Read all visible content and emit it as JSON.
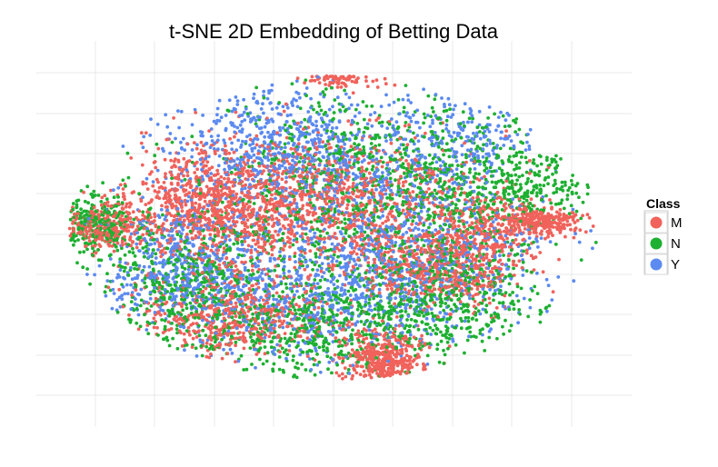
{
  "chart_data": {
    "type": "scatter",
    "title": "t-SNE 2D Embedding of Betting Data",
    "xlabel": "",
    "ylabel": "",
    "grid": true,
    "axes_tick_labels_visible": false,
    "legend": {
      "title": "Class",
      "placement": "right",
      "entries": [
        {
          "label": "M",
          "color": "#F0625B"
        },
        {
          "label": "N",
          "color": "#1DB031"
        },
        {
          "label": "Y",
          "color": "#5B8AF0"
        }
      ]
    },
    "xlim": [
      -60,
      60
    ],
    "ylim": [
      -60,
      60
    ],
    "series": [
      {
        "class": "M",
        "color": "#F0625B",
        "clusters": [
          {
            "cx": -25,
            "cy": 8,
            "sx": 8,
            "sy": 9,
            "weight": 3
          },
          {
            "cx": 0,
            "cy": 10,
            "sx": 14,
            "sy": 12,
            "weight": 4
          },
          {
            "cx": 10,
            "cy": -40,
            "sx": 4,
            "sy": 5,
            "weight": 2
          },
          {
            "cx": 22,
            "cy": -10,
            "sx": 8,
            "sy": 6,
            "weight": 2
          },
          {
            "cx": 2,
            "cy": 50,
            "sx": 4,
            "sy": 2,
            "weight": 1
          },
          {
            "cx": -46,
            "cy": 2,
            "sx": 4,
            "sy": 4,
            "weight": 1
          },
          {
            "cx": -20,
            "cy": -25,
            "sx": 10,
            "sy": 6,
            "weight": 2
          },
          {
            "cx": 42,
            "cy": 4,
            "sx": 4,
            "sy": 2,
            "weight": 1
          },
          {
            "cx": 30,
            "cy": 2,
            "sx": 6,
            "sy": 6,
            "weight": 1
          }
        ]
      },
      {
        "class": "N",
        "color": "#1DB031",
        "clusters": [
          {
            "cx": 10,
            "cy": 15,
            "sx": 18,
            "sy": 16,
            "weight": 4
          },
          {
            "cx": -30,
            "cy": -15,
            "sx": 10,
            "sy": 10,
            "weight": 2
          },
          {
            "cx": 20,
            "cy": -20,
            "sx": 10,
            "sy": 10,
            "weight": 2
          },
          {
            "cx": -5,
            "cy": -30,
            "sx": 12,
            "sy": 8,
            "weight": 2
          },
          {
            "cx": 35,
            "cy": 15,
            "sx": 8,
            "sy": 6,
            "weight": 1
          },
          {
            "cx": -48,
            "cy": 4,
            "sx": 4,
            "sy": 5,
            "weight": 1
          }
        ]
      },
      {
        "class": "Y",
        "color": "#5B8AF0",
        "clusters": [
          {
            "cx": -10,
            "cy": 25,
            "sx": 12,
            "sy": 10,
            "weight": 3
          },
          {
            "cx": -30,
            "cy": -10,
            "sx": 8,
            "sy": 10,
            "weight": 2
          },
          {
            "cx": 15,
            "cy": -5,
            "sx": 14,
            "sy": 12,
            "weight": 3
          },
          {
            "cx": -5,
            "cy": -20,
            "sx": 14,
            "sy": 10,
            "weight": 2
          },
          {
            "cx": 25,
            "cy": 30,
            "sx": 8,
            "sy": 8,
            "weight": 1
          }
        ]
      }
    ]
  }
}
